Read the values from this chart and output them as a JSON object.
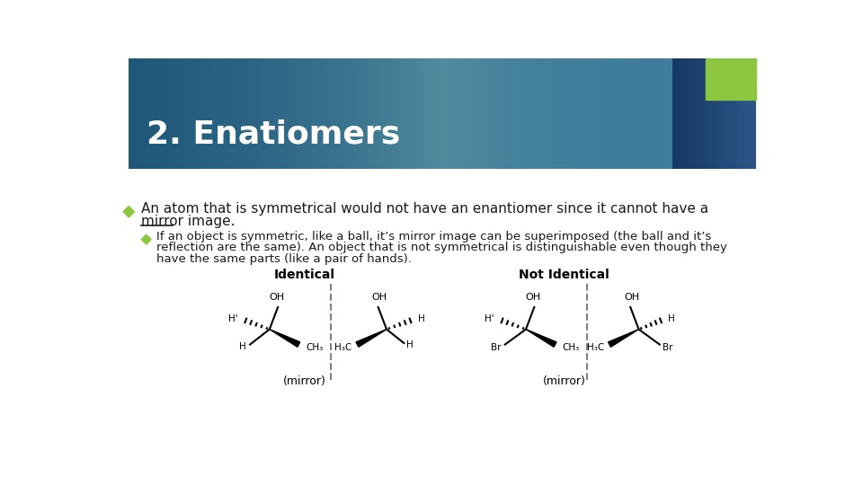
{
  "title": "2. Enatiomers",
  "title_color": "#FFFFFF",
  "bg_color": "#FFFFFF",
  "accent_color": "#8dc63f",
  "bullet_color": "#8dc63f",
  "text_color": "#1a1a1a",
  "line1": "An atom that is symmetrical would not have an enantiomer since it cannot have a",
  "line2_under": "mirror",
  "line2_post": " image.",
  "sub1": "If an object is symmetric, like a ball, it’s mirror image can be superimposed (the ball and it’s",
  "sub2": "reflection are the same). An object that is not symmetrical is distinguishable even though they",
  "sub3": "have the same parts (like a pair of hands).",
  "label_identical": "Identical",
  "label_not_identical": "Not Identical",
  "label_mirror": "(mirror)"
}
